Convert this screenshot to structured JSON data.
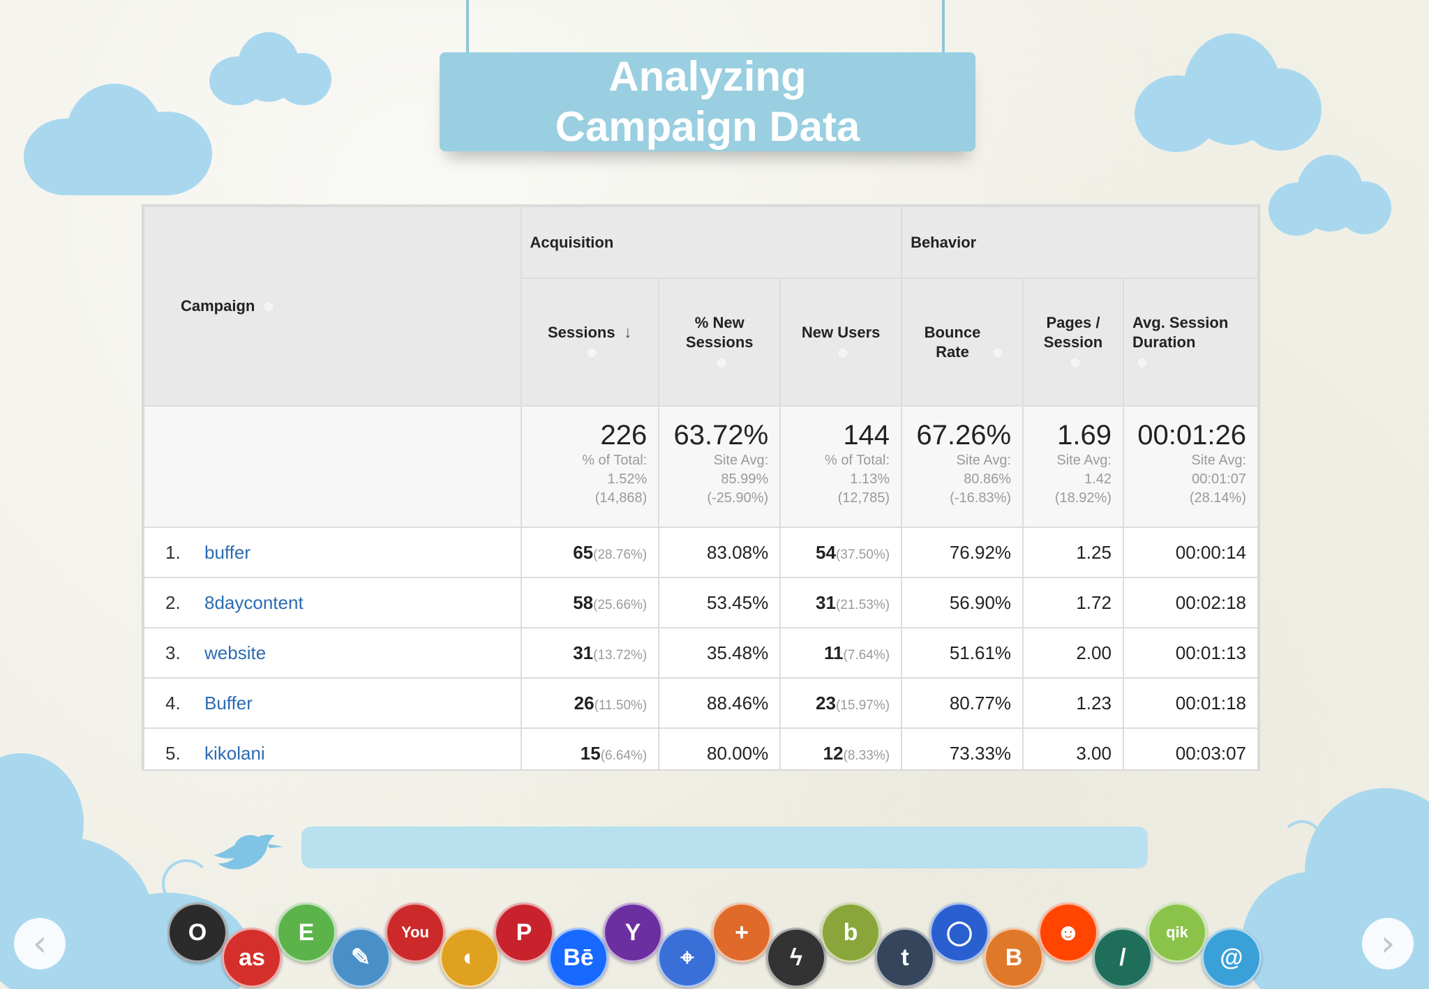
{
  "slide": {
    "title": "Analyzing Campaign Data"
  },
  "table": {
    "group_headers": {
      "campaign": "Campaign",
      "acquisition": "Acquisition",
      "behavior": "Behavior"
    },
    "columns": [
      "Sessions",
      "% New Sessions",
      "New Users",
      "Bounce Rate",
      "Pages / Session",
      "Avg. Session Duration"
    ],
    "totals": [
      {
        "value": "226",
        "sub1": "% of Total:",
        "sub2": "1.52%",
        "sub3": "(14,868)"
      },
      {
        "value": "63.72%",
        "sub1": "Site Avg:",
        "sub2": "85.99%",
        "sub3": "(-25.90%)"
      },
      {
        "value": "144",
        "sub1": "% of Total:",
        "sub2": "1.13%",
        "sub3": "(12,785)"
      },
      {
        "value": "67.26%",
        "sub1": "Site Avg:",
        "sub2": "80.86%",
        "sub3": "(-16.83%)"
      },
      {
        "value": "1.69",
        "sub1": "Site Avg:",
        "sub2": "1.42",
        "sub3": "(18.92%)"
      },
      {
        "value": "00:01:26",
        "sub1": "Site Avg:",
        "sub2": "00:01:07",
        "sub3": "(28.14%)"
      }
    ],
    "rows": [
      {
        "num": "1.",
        "campaign": "buffer",
        "sessions": "65",
        "sessions_pct": "(28.76%)",
        "new_sessions": "83.08%",
        "new_users": "54",
        "new_users_pct": "(37.50%)",
        "bounce": "76.92%",
        "pages": "1.25",
        "duration": "00:00:14"
      },
      {
        "num": "2.",
        "campaign": "8daycontent",
        "sessions": "58",
        "sessions_pct": "(25.66%)",
        "new_sessions": "53.45%",
        "new_users": "31",
        "new_users_pct": "(21.53%)",
        "bounce": "56.90%",
        "pages": "1.72",
        "duration": "00:02:18"
      },
      {
        "num": "3.",
        "campaign": "website",
        "sessions": "31",
        "sessions_pct": "(13.72%)",
        "new_sessions": "35.48%",
        "new_users": "11",
        "new_users_pct": "(7.64%)",
        "bounce": "51.61%",
        "pages": "2.00",
        "duration": "00:01:13"
      },
      {
        "num": "4.",
        "campaign": "Buffer",
        "sessions": "26",
        "sessions_pct": "(11.50%)",
        "new_sessions": "88.46%",
        "new_users": "23",
        "new_users_pct": "(15.97%)",
        "bounce": "80.77%",
        "pages": "1.23",
        "duration": "00:01:18"
      },
      {
        "num": "5.",
        "campaign": "kikolani",
        "sessions": "15",
        "sessions_pct": "(6.64%)",
        "new_sessions": "80.00%",
        "new_users": "12",
        "new_users_pct": "(8.33%)",
        "bounce": "73.33%",
        "pages": "3.00",
        "duration": "00:03:07"
      }
    ]
  },
  "nav": {
    "prev_icon": "‹",
    "next_icon": "›"
  },
  "social_icons": [
    {
      "name": "opera-icon",
      "glyph": "O",
      "color": "#2b2b2b"
    },
    {
      "name": "lastfm-icon",
      "glyph": "as",
      "color": "#d42f2a"
    },
    {
      "name": "evernote-icon",
      "glyph": "E",
      "color": "#5bb34a"
    },
    {
      "name": "pencil-icon",
      "glyph": "✎",
      "color": "#4a90c8"
    },
    {
      "name": "youtube-icon",
      "glyph": "You",
      "color": "#cc2a2a"
    },
    {
      "name": "picasa-icon",
      "glyph": "◐",
      "color": "#e0a020"
    },
    {
      "name": "pinterest-icon",
      "glyph": "P",
      "color": "#c8232c"
    },
    {
      "name": "behance-icon",
      "glyph": "Bē",
      "color": "#1769ff"
    },
    {
      "name": "yahoo-icon",
      "glyph": "Y",
      "color": "#6b2fa0"
    },
    {
      "name": "maps-icon",
      "glyph": "⌖",
      "color": "#3b6fd8"
    },
    {
      "name": "plus-icon",
      "glyph": "+",
      "color": "#e06a2a"
    },
    {
      "name": "flash-icon",
      "glyph": "ϟ",
      "color": "#333333"
    },
    {
      "name": "bebo-icon",
      "glyph": "b",
      "color": "#8aa63a"
    },
    {
      "name": "tumblr-icon",
      "glyph": "t",
      "color": "#35465c"
    },
    {
      "name": "chat-icon",
      "glyph": "◯",
      "color": "#2a5fd0"
    },
    {
      "name": "blogger-icon",
      "glyph": "B",
      "color": "#e0782a"
    },
    {
      "name": "reddit-icon",
      "glyph": "☻",
      "color": "#ff4500"
    },
    {
      "name": "slash-icon",
      "glyph": "/",
      "color": "#1e6e5a"
    },
    {
      "name": "qik-icon",
      "glyph": "qik",
      "color": "#8bc34a"
    },
    {
      "name": "at-icon",
      "glyph": "@",
      "color": "#3aa0d8"
    }
  ]
}
